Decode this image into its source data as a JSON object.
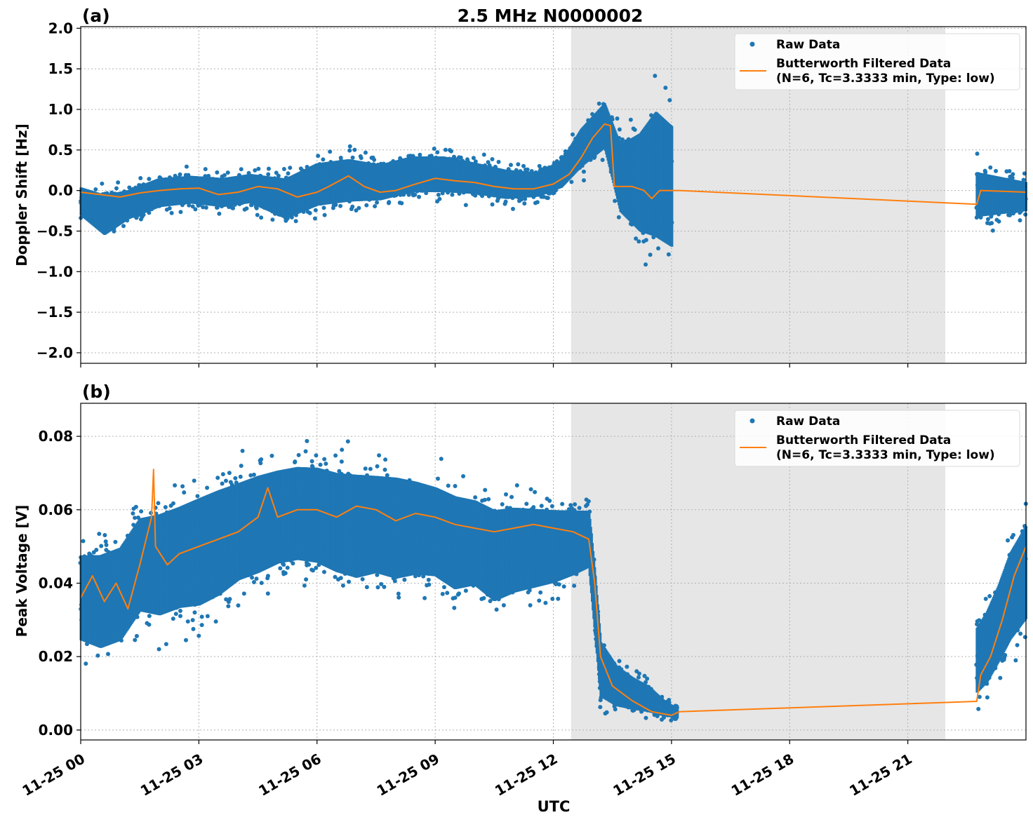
{
  "figure": {
    "title": "2.5 MHz N0000002",
    "xlabel": "UTC"
  },
  "chart_data": [
    {
      "type": "scatter",
      "panel_label": "(a)",
      "ylabel": "Doppler Shift [Hz]",
      "xlim_hours": [
        0,
        24
      ],
      "ylim": [
        -2.13,
        2.02
      ],
      "yticks": [
        2.0,
        1.5,
        1.0,
        0.5,
        0.0,
        -0.5,
        -1.0,
        -1.5,
        -2.0
      ],
      "ytick_labels": [
        "2.0",
        "1.5",
        "1.0",
        "0.5",
        "0.0",
        "−0.5",
        "−1.0",
        "−1.5",
        "−2.0"
      ],
      "shaded_span_hours": [
        12.45,
        21.95
      ],
      "grid": true,
      "legend_position": "top-right",
      "series": [
        {
          "name": "Raw Data",
          "kind": "points",
          "color": "#1f77b4",
          "envelope": [
            [
              0.0,
              -0.45,
              0.18
            ],
            [
              0.6,
              -0.75,
              0.15
            ],
            [
              1.2,
              -0.5,
              0.15
            ],
            [
              2.0,
              -0.35,
              0.3
            ],
            [
              2.8,
              -0.3,
              0.32
            ],
            [
              3.6,
              -0.35,
              0.3
            ],
            [
              4.3,
              -0.3,
              0.35
            ],
            [
              5.2,
              -0.55,
              0.35
            ],
            [
              6.0,
              -0.4,
              0.55
            ],
            [
              6.8,
              -0.35,
              0.6
            ],
            [
              7.6,
              -0.3,
              0.5
            ],
            [
              8.4,
              -0.2,
              0.6
            ],
            [
              9.2,
              -0.2,
              0.6
            ],
            [
              10.0,
              -0.2,
              0.5
            ],
            [
              10.8,
              -0.25,
              0.4
            ],
            [
              11.6,
              -0.2,
              0.35
            ],
            [
              12.2,
              -0.1,
              0.5
            ],
            [
              12.7,
              0.1,
              0.95
            ],
            [
              13.3,
              0.3,
              1.3
            ],
            [
              13.7,
              -0.6,
              0.9
            ],
            [
              14.2,
              -1.0,
              1.2
            ],
            [
              14.6,
              -1.2,
              1.6
            ],
            [
              15.0,
              -1.3,
              1.4
            ]
          ],
          "gap_hours": [
            15.2,
            22.75
          ],
          "post_gap_envelope": [
            [
              22.75,
              -0.55,
              0.45
            ],
            [
              24.0,
              -0.4,
              0.25
            ]
          ]
        },
        {
          "name": "Butterworth Filtered Data\n(N=6, Tc=3.3333 min, Type: low)",
          "kind": "line",
          "color": "#ff7f0e",
          "points": [
            [
              0.0,
              -0.02
            ],
            [
              0.5,
              -0.05
            ],
            [
              1.0,
              -0.08
            ],
            [
              1.5,
              -0.03
            ],
            [
              2.0,
              0.0
            ],
            [
              2.5,
              0.02
            ],
            [
              3.0,
              0.03
            ],
            [
              3.5,
              -0.05
            ],
            [
              4.0,
              -0.02
            ],
            [
              4.5,
              0.05
            ],
            [
              5.0,
              0.02
            ],
            [
              5.5,
              -0.08
            ],
            [
              6.0,
              -0.02
            ],
            [
              6.3,
              0.05
            ],
            [
              6.8,
              0.18
            ],
            [
              7.2,
              0.05
            ],
            [
              7.6,
              -0.02
            ],
            [
              8.0,
              0.0
            ],
            [
              8.5,
              0.08
            ],
            [
              9.0,
              0.15
            ],
            [
              9.5,
              0.12
            ],
            [
              10.0,
              0.1
            ],
            [
              10.5,
              0.05
            ],
            [
              11.0,
              0.02
            ],
            [
              11.5,
              0.02
            ],
            [
              12.0,
              0.08
            ],
            [
              12.4,
              0.2
            ],
            [
              12.7,
              0.4
            ],
            [
              13.0,
              0.65
            ],
            [
              13.3,
              0.82
            ],
            [
              13.45,
              0.8
            ],
            [
              13.55,
              0.05
            ],
            [
              14.0,
              0.05
            ],
            [
              14.3,
              0.0
            ],
            [
              14.5,
              -0.1
            ],
            [
              14.7,
              0.0
            ],
            [
              15.0,
              0.0
            ],
            [
              15.2,
              0.0
            ],
            [
              22.75,
              -0.17
            ],
            [
              22.85,
              0.0
            ],
            [
              24.0,
              -0.02
            ]
          ]
        }
      ]
    },
    {
      "type": "scatter",
      "panel_label": "(b)",
      "ylabel": "Peak Voltage [V]",
      "xlim_hours": [
        0,
        24
      ],
      "ylim": [
        -0.0027,
        0.089
      ],
      "yticks": [
        0.08,
        0.06,
        0.04,
        0.02,
        0.0
      ],
      "ytick_labels": [
        "0.08",
        "0.06",
        "0.04",
        "0.02",
        "0.00"
      ],
      "xtick_hours": [
        0,
        3,
        6,
        9,
        12,
        15,
        18,
        21
      ],
      "xtick_labels": [
        "11-25 00",
        "11-25 03",
        "11-25 06",
        "11-25 09",
        "11-25 12",
        "11-25 15",
        "11-25 18",
        "11-25 21"
      ],
      "shaded_span_hours": [
        12.45,
        21.95
      ],
      "grid": true,
      "legend_position": "top-right",
      "series": [
        {
          "name": "Raw Data",
          "kind": "points",
          "color": "#1f77b4",
          "envelope": [
            [
              0.0,
              0.015,
              0.057
            ],
            [
              0.5,
              0.012,
              0.058
            ],
            [
              1.0,
              0.014,
              0.06
            ],
            [
              1.5,
              0.022,
              0.068
            ],
            [
              2.0,
              0.02,
              0.07
            ],
            [
              2.5,
              0.022,
              0.072
            ],
            [
              3.0,
              0.022,
              0.075
            ],
            [
              3.5,
              0.025,
              0.077
            ],
            [
              4.0,
              0.03,
              0.078
            ],
            [
              4.5,
              0.032,
              0.08
            ],
            [
              5.0,
              0.035,
              0.081
            ],
            [
              5.5,
              0.036,
              0.082
            ],
            [
              6.0,
              0.035,
              0.082
            ],
            [
              6.5,
              0.032,
              0.081
            ],
            [
              7.0,
              0.03,
              0.081
            ],
            [
              7.5,
              0.032,
              0.08
            ],
            [
              8.0,
              0.03,
              0.08
            ],
            [
              8.5,
              0.032,
              0.078
            ],
            [
              9.0,
              0.032,
              0.076
            ],
            [
              9.5,
              0.028,
              0.074
            ],
            [
              10.0,
              0.03,
              0.072
            ],
            [
              10.5,
              0.025,
              0.07
            ],
            [
              11.0,
              0.028,
              0.07
            ],
            [
              11.5,
              0.03,
              0.069
            ],
            [
              12.0,
              0.032,
              0.068
            ],
            [
              12.5,
              0.035,
              0.067
            ],
            [
              12.9,
              0.038,
              0.066
            ],
            [
              13.05,
              0.02,
              0.05
            ],
            [
              13.2,
              0.003,
              0.03
            ],
            [
              13.6,
              0.002,
              0.022
            ],
            [
              14.0,
              0.002,
              0.018
            ],
            [
              14.4,
              0.002,
              0.015
            ],
            [
              14.8,
              0.002,
              0.01
            ],
            [
              15.15,
              0.002,
              0.007
            ]
          ],
          "gap_hours": [
            15.2,
            22.75
          ],
          "post_gap_envelope": [
            [
              22.75,
              0.003,
              0.035
            ],
            [
              23.0,
              0.005,
              0.04
            ],
            [
              23.3,
              0.01,
              0.048
            ],
            [
              23.6,
              0.015,
              0.058
            ],
            [
              24.0,
              0.02,
              0.066
            ]
          ]
        },
        {
          "name": "Butterworth Filtered Data\n(N=6, Tc=3.3333 min, Type: low)",
          "kind": "line",
          "color": "#ff7f0e",
          "points": [
            [
              0.0,
              0.036
            ],
            [
              0.3,
              0.042
            ],
            [
              0.6,
              0.035
            ],
            [
              0.9,
              0.04
            ],
            [
              1.2,
              0.033
            ],
            [
              1.5,
              0.045
            ],
            [
              1.8,
              0.058
            ],
            [
              1.85,
              0.071
            ],
            [
              1.9,
              0.05
            ],
            [
              2.2,
              0.045
            ],
            [
              2.5,
              0.048
            ],
            [
              3.0,
              0.05
            ],
            [
              3.5,
              0.052
            ],
            [
              4.0,
              0.054
            ],
            [
              4.5,
              0.058
            ],
            [
              4.75,
              0.066
            ],
            [
              5.0,
              0.058
            ],
            [
              5.5,
              0.06
            ],
            [
              6.0,
              0.06
            ],
            [
              6.5,
              0.058
            ],
            [
              7.0,
              0.061
            ],
            [
              7.5,
              0.06
            ],
            [
              8.0,
              0.057
            ],
            [
              8.5,
              0.059
            ],
            [
              9.0,
              0.058
            ],
            [
              9.5,
              0.056
            ],
            [
              10.0,
              0.055
            ],
            [
              10.5,
              0.054
            ],
            [
              11.0,
              0.055
            ],
            [
              11.5,
              0.056
            ],
            [
              12.0,
              0.055
            ],
            [
              12.5,
              0.054
            ],
            [
              12.9,
              0.052
            ],
            [
              13.05,
              0.04
            ],
            [
              13.2,
              0.02
            ],
            [
              13.5,
              0.012
            ],
            [
              14.0,
              0.008
            ],
            [
              14.5,
              0.005
            ],
            [
              15.0,
              0.004
            ],
            [
              15.2,
              0.005
            ],
            [
              22.75,
              0.0078
            ],
            [
              22.85,
              0.015
            ],
            [
              23.1,
              0.02
            ],
            [
              23.4,
              0.03
            ],
            [
              23.7,
              0.042
            ],
            [
              24.0,
              0.05
            ]
          ]
        }
      ]
    }
  ]
}
